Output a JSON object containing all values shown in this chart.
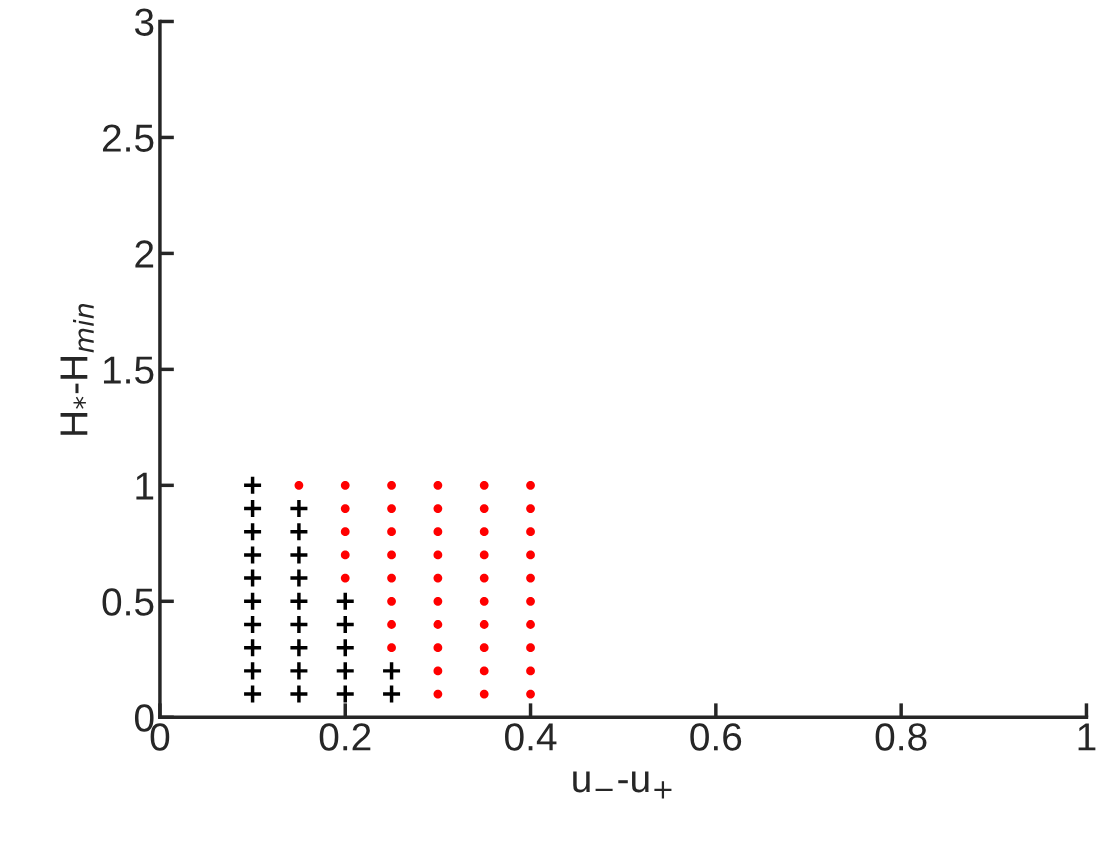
{
  "chart_data": {
    "type": "scatter",
    "xlabel": "u$_{−}$-u$_{+}$",
    "ylabel": "H$_{*}$-H$_{min}$",
    "xlim": [
      0,
      1
    ],
    "xticks": [
      0,
      0.2,
      0.4,
      0.6,
      0.8,
      1
    ],
    "ylim": [
      0,
      3
    ],
    "yticks": [
      0,
      0.5,
      1,
      1.5,
      2,
      2.5,
      3
    ],
    "grid": false,
    "legend": false,
    "series": [
      {
        "color": "#000000",
        "marker": "cross",
        "x": [
          0.1,
          0.1,
          0.1,
          0.1,
          0.1,
          0.1,
          0.1,
          0.1,
          0.1,
          0.1,
          0.15,
          0.15,
          0.15,
          0.15,
          0.15,
          0.15,
          0.15,
          0.15,
          0.15,
          0.2,
          0.2,
          0.2,
          0.2,
          0.2,
          0.25,
          0.25
        ],
        "values": [
          0.1,
          0.2,
          0.3,
          0.4,
          0.5,
          0.6,
          0.7,
          0.8,
          0.9,
          1.0,
          0.1,
          0.2,
          0.3,
          0.4,
          0.5,
          0.6,
          0.7,
          0.8,
          0.9,
          0.1,
          0.2,
          0.3,
          0.4,
          0.5,
          0.1,
          0.2
        ]
      },
      {
        "color": "#ff0000",
        "marker": "circle",
        "x": [
          0.15,
          0.2,
          0.2,
          0.2,
          0.2,
          0.2,
          0.25,
          0.25,
          0.25,
          0.25,
          0.25,
          0.25,
          0.25,
          0.25,
          0.3,
          0.3,
          0.3,
          0.3,
          0.3,
          0.3,
          0.3,
          0.3,
          0.3,
          0.3,
          0.35,
          0.35,
          0.35,
          0.35,
          0.35,
          0.35,
          0.35,
          0.35,
          0.35,
          0.35,
          0.4,
          0.4,
          0.4,
          0.4,
          0.4,
          0.4,
          0.4,
          0.4,
          0.4,
          0.4
        ],
        "values": [
          1.0,
          0.6,
          0.7,
          0.8,
          0.9,
          1.0,
          0.3,
          0.4,
          0.5,
          0.6,
          0.7,
          0.8,
          0.9,
          1.0,
          0.1,
          0.2,
          0.3,
          0.4,
          0.5,
          0.6,
          0.7,
          0.8,
          0.9,
          1.0,
          0.1,
          0.2,
          0.3,
          0.4,
          0.5,
          0.6,
          0.7,
          0.8,
          0.9,
          1.0,
          0.1,
          0.2,
          0.3,
          0.4,
          0.5,
          0.6,
          0.7,
          0.8,
          0.9,
          1.0
        ]
      }
    ]
  }
}
